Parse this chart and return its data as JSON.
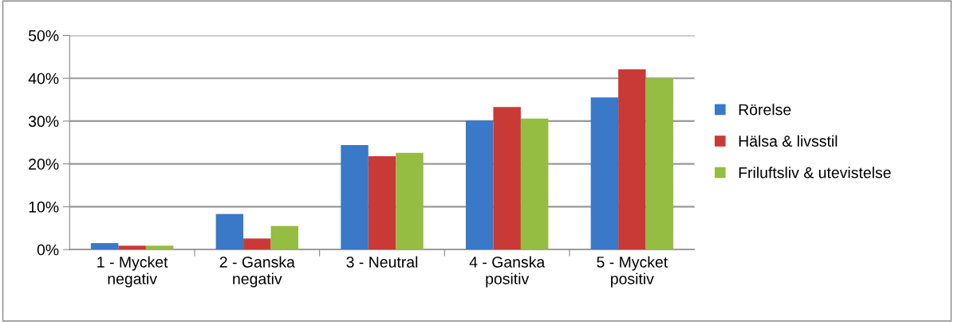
{
  "chart_data": {
    "type": "bar",
    "categories": [
      "1 - Mycket\nnegativ",
      "2 - Ganska\nnegativ",
      "3 - Neutral",
      "4 - Ganska\npositiv",
      "5 - Mycket\npositiv"
    ],
    "series": [
      {
        "name": "Rörelse",
        "color": "#3a78c8",
        "values": [
          1.5,
          8.3,
          24.4,
          30.1,
          35.5
        ]
      },
      {
        "name": "Hälsa & livsstil",
        "color": "#c93a36",
        "values": [
          0.9,
          2.6,
          21.8,
          33.3,
          42.1
        ]
      },
      {
        "name": "Friluftsliv & utevistelse",
        "color": "#94bd42",
        "values": [
          0.9,
          5.5,
          22.6,
          30.6,
          40.0
        ]
      }
    ],
    "ylim": [
      0,
      50
    ],
    "yticks": [
      {
        "value": 0,
        "label": "0%"
      },
      {
        "value": 10,
        "label": "10%"
      },
      {
        "value": 20,
        "label": "20%"
      },
      {
        "value": 30,
        "label": "30%"
      },
      {
        "value": 40,
        "label": "40%"
      },
      {
        "value": 50,
        "label": "50%"
      }
    ],
    "grid": "y",
    "legend": "right"
  }
}
